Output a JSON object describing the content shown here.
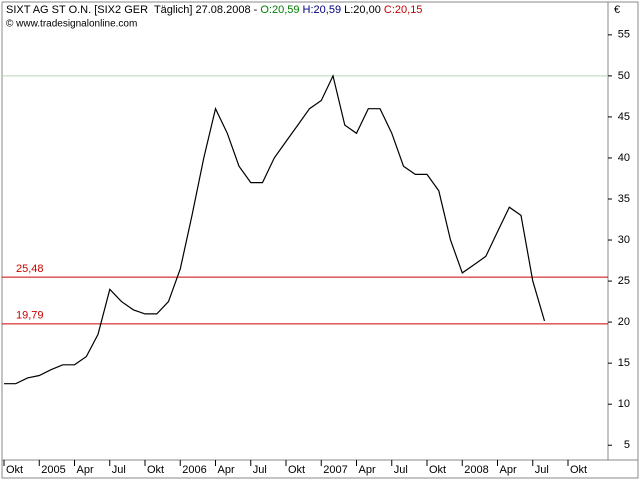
{
  "chart_data": {
    "type": "line",
    "title_parts": [
      {
        "text": "SIXT AG ST O.N. [SIX2 GER  Täglich] 27.08.2008 - ",
        "color": "#000000"
      },
      {
        "text": "O:20,59",
        "color": "#008000"
      },
      {
        "text": " H:20,59",
        "color": "#000080"
      },
      {
        "text": " L:20,00",
        "color": "#000000"
      },
      {
        "text": " C:20,15",
        "color": "#c00000"
      }
    ],
    "subtitle": "© www.tradesignalonline.com",
    "y_unit": "€",
    "x": [
      "2004-10",
      "2004-11",
      "2004-12",
      "2005-01",
      "2005-02",
      "2005-03",
      "2005-04",
      "2005-05",
      "2005-06",
      "2005-07",
      "2005-08",
      "2005-09",
      "2005-10",
      "2005-11",
      "2005-12",
      "2006-01",
      "2006-02",
      "2006-03",
      "2006-04",
      "2006-05",
      "2006-06",
      "2006-07",
      "2006-08",
      "2006-09",
      "2006-10",
      "2006-11",
      "2006-12",
      "2007-01",
      "2007-02",
      "2007-03",
      "2007-04",
      "2007-05",
      "2007-06",
      "2007-07",
      "2007-08",
      "2007-09",
      "2007-10",
      "2007-11",
      "2007-12",
      "2008-01",
      "2008-02",
      "2008-03",
      "2008-04",
      "2008-05",
      "2008-06",
      "2008-07",
      "2008-08"
    ],
    "series": [
      {
        "color": "#000000",
        "values": [
          12.5,
          12.5,
          13.2,
          13.5,
          14.2,
          14.8,
          14.8,
          15.8,
          18.5,
          24,
          22.5,
          21.5,
          21,
          21,
          22.5,
          26.5,
          33,
          40,
          46,
          43,
          39,
          37,
          37,
          40,
          42,
          44,
          46,
          47,
          50,
          44,
          43,
          46,
          46,
          43,
          39,
          38,
          38,
          36,
          30,
          26,
          27,
          28,
          31,
          34,
          33,
          25,
          20.15
        ]
      }
    ],
    "hlines": [
      {
        "value": 25.48,
        "label": "25,48",
        "color": "#cc0000"
      },
      {
        "value": 19.79,
        "label": "19,79",
        "color": "#cc0000"
      },
      {
        "value": 50,
        "color": "#b8d8b8"
      }
    ],
    "ylim": [
      3.2,
      59.0
    ],
    "yticks": [
      5,
      10,
      15,
      20,
      25,
      30,
      35,
      40,
      45,
      50,
      55
    ],
    "xlim": [
      "2004-10",
      "2008-10"
    ],
    "xticks": [
      {
        "value": "2004-10",
        "label": "Okt"
      },
      {
        "value": "2005-01",
        "label": "2005"
      },
      {
        "value": "2005-04",
        "label": "Apr"
      },
      {
        "value": "2005-07",
        "label": "Jul"
      },
      {
        "value": "2005-10",
        "label": "Okt"
      },
      {
        "value": "2006-01",
        "label": "2006"
      },
      {
        "value": "2006-04",
        "label": "Apr"
      },
      {
        "value": "2006-07",
        "label": "Jul"
      },
      {
        "value": "2006-10",
        "label": "Okt"
      },
      {
        "value": "2007-01",
        "label": "2007"
      },
      {
        "value": "2007-04",
        "label": "Apr"
      },
      {
        "value": "2007-07",
        "label": "Jul"
      },
      {
        "value": "2007-10",
        "label": "Okt"
      },
      {
        "value": "2008-01",
        "label": "2008"
      },
      {
        "value": "2008-04",
        "label": "Apr"
      },
      {
        "value": "2008-07",
        "label": "Jul"
      },
      {
        "value": "2008-10",
        "label": "Okt"
      }
    ]
  }
}
